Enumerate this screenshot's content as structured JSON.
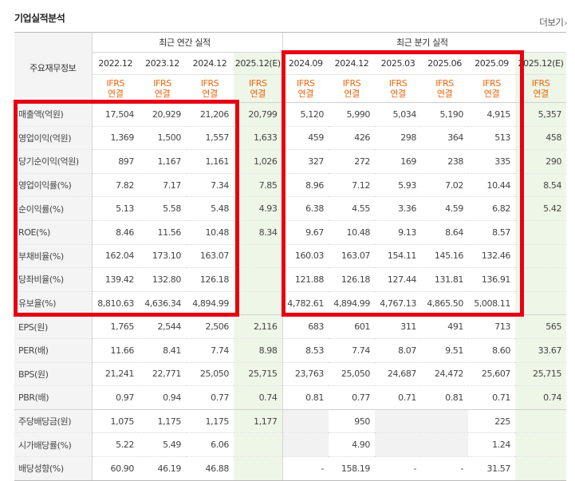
{
  "title": "기업실적분석",
  "more_label": "더보기",
  "more_icon": "chevron-right-icon",
  "table": {
    "row_header_label": "주요재무정보",
    "groups": {
      "annual": "최근 연간 실적",
      "quarterly": "최근 분기 실적"
    },
    "annual_periods": [
      "2022.12",
      "2023.12",
      "2024.12",
      "2025.12(E)"
    ],
    "quarter_periods": [
      "2024.09",
      "2024.12",
      "2025.03",
      "2025.06",
      "2025.09",
      "2025.12(E)"
    ],
    "basis_line1": "IFRS",
    "basis_line2": "연결",
    "rows": [
      {
        "label": "매출액(억원)",
        "annual": [
          "17,504",
          "20,929",
          "21,206",
          "20,799"
        ],
        "quarter": [
          "5,120",
          "5,990",
          "5,034",
          "5,190",
          "4,915",
          "5,357"
        ]
      },
      {
        "label": "영업이익(억원)",
        "annual": [
          "1,369",
          "1,500",
          "1,557",
          "1,633"
        ],
        "quarter": [
          "459",
          "426",
          "298",
          "364",
          "513",
          "458"
        ]
      },
      {
        "label": "당기순이익(억원)",
        "annual": [
          "897",
          "1,167",
          "1,161",
          "1,026"
        ],
        "quarter": [
          "327",
          "272",
          "169",
          "238",
          "335",
          "290"
        ]
      },
      {
        "label": "영업이익률(%)",
        "annual": [
          "7.82",
          "7.17",
          "7.34",
          "7.85"
        ],
        "quarter": [
          "8.96",
          "7.12",
          "5.93",
          "7.02",
          "10.44",
          "8.54"
        ]
      },
      {
        "label": "순이익률(%)",
        "annual": [
          "5.13",
          "5.58",
          "5.48",
          "4.93"
        ],
        "quarter": [
          "6.38",
          "4.55",
          "3.36",
          "4.59",
          "6.82",
          "5.42"
        ]
      },
      {
        "label": "ROE(%)",
        "annual": [
          "8.46",
          "11.56",
          "10.48",
          "8.34"
        ],
        "quarter": [
          "9.67",
          "10.48",
          "9.13",
          "8.64",
          "8.57",
          ""
        ]
      },
      {
        "label": "부채비율(%)",
        "annual": [
          "162.04",
          "173.10",
          "163.07",
          ""
        ],
        "quarter": [
          "160.03",
          "163.07",
          "154.11",
          "145.16",
          "132.46",
          ""
        ]
      },
      {
        "label": "당좌비율(%)",
        "annual": [
          "139.42",
          "132.80",
          "126.18",
          ""
        ],
        "quarter": [
          "121.88",
          "126.18",
          "127.44",
          "131.81",
          "136.91",
          ""
        ]
      },
      {
        "label": "유보율(%)",
        "annual": [
          "8,810.63",
          "4,636.34",
          "4,894.99",
          ""
        ],
        "quarter": [
          "4,782.61",
          "4,894.99",
          "4,767.13",
          "4,865.50",
          "5,008.11",
          ""
        ]
      },
      {
        "label": "EPS(원)",
        "annual": [
          "1,765",
          "2,544",
          "2,506",
          "2,116"
        ],
        "quarter": [
          "683",
          "601",
          "311",
          "491",
          "713",
          "565"
        ]
      },
      {
        "label": "PER(배)",
        "annual": [
          "11.66",
          "8.41",
          "7.74",
          "8.98"
        ],
        "quarter": [
          "8.53",
          "7.74",
          "8.07",
          "9.51",
          "8.60",
          "33.67"
        ]
      },
      {
        "label": "BPS(원)",
        "annual": [
          "21,241",
          "22,771",
          "25,050",
          "25,715"
        ],
        "quarter": [
          "23,763",
          "25,050",
          "24,687",
          "24,472",
          "25,607",
          "25,715"
        ]
      },
      {
        "label": "PBR(배)",
        "annual": [
          "0.97",
          "0.94",
          "0.77",
          "0.74"
        ],
        "quarter": [
          "0.81",
          "0.77",
          "0.71",
          "0.81",
          "0.71",
          "0.74"
        ]
      },
      {
        "label": "주당배당금(원)",
        "annual": [
          "1,075",
          "1,175",
          "1,175",
          "1,177"
        ],
        "quarter": [
          "",
          "950",
          "",
          "",
          "225",
          ""
        ]
      },
      {
        "label": "시가배당률(%)",
        "annual": [
          "5.22",
          "5.49",
          "6.06",
          ""
        ],
        "quarter": [
          "",
          "4.90",
          "",
          "",
          "1.24",
          ""
        ]
      },
      {
        "label": "배당성향(%)",
        "annual": [
          "60.90",
          "46.19",
          "46.88",
          ""
        ],
        "quarter": [
          "-",
          "158.19",
          "-",
          "-",
          "31.57",
          ""
        ]
      }
    ],
    "greyed_quarter_cells": [
      [
        13,
        0
      ],
      [
        13,
        2
      ],
      [
        13,
        3
      ],
      [
        14,
        0
      ],
      [
        14,
        2
      ],
      [
        14,
        3
      ]
    ]
  },
  "highlight_color": "#e60013"
}
